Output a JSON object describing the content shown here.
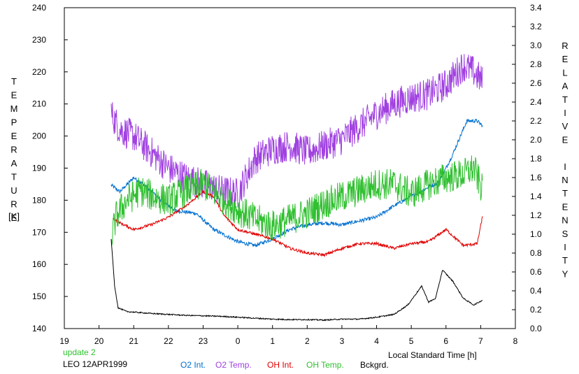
{
  "chart_data": {
    "type": "line",
    "title": "",
    "y_left_label": "TEMPERATURE",
    "y_left_unit": "[K]",
    "y_right_label": "RELATIVE INTENSITY",
    "xlabel": "Local Standard Time [h]",
    "update_note": "update 2",
    "site_date": "LEO 12APR1999",
    "x_range": [
      19,
      32
    ],
    "x_tick_labels": [
      "19",
      "20",
      "21",
      "22",
      "23",
      "0",
      "1",
      "2",
      "3",
      "4",
      "5",
      "6",
      "7",
      "8"
    ],
    "y_left_range": [
      140,
      240
    ],
    "y_left_ticks": [
      "140",
      "150",
      "160",
      "170",
      "180",
      "190",
      "200",
      "210",
      "220",
      "230",
      "240"
    ],
    "y_right_range": [
      0.0,
      3.4
    ],
    "y_right_ticks": [
      "0.0",
      "0.2",
      "0.4",
      "0.6",
      "0.8",
      "1.0",
      "1.2",
      "1.4",
      "1.6",
      "1.8",
      "2.0",
      "2.2",
      "2.4",
      "2.6",
      "2.8",
      "3.0",
      "3.2",
      "3.4"
    ],
    "grid": false,
    "legend_position": "bottom",
    "series": [
      {
        "name": "O2 Int.",
        "axis": "right",
        "color": "#0070d0",
        "noise": 0.02,
        "x": [
          20.35,
          20.6,
          21.0,
          21.3,
          21.8,
          22.2,
          22.8,
          23.3,
          24.0,
          24.5,
          25.0,
          25.5,
          26.0,
          26.5,
          27.0,
          27.5,
          28.0,
          28.5,
          29.0,
          29.5,
          29.8,
          30.2,
          30.6,
          30.9,
          31.05
        ],
        "y": [
          1.52,
          1.45,
          1.6,
          1.52,
          1.36,
          1.25,
          1.22,
          1.05,
          0.92,
          0.88,
          0.95,
          1.05,
          1.1,
          1.12,
          1.1,
          1.14,
          1.18,
          1.3,
          1.4,
          1.5,
          1.55,
          1.85,
          2.2,
          2.2,
          2.15
        ]
      },
      {
        "name": "O2 Temp.",
        "axis": "left",
        "color": "#a040e0",
        "noise": 5,
        "x": [
          20.35,
          20.6,
          21.0,
          21.5,
          22.0,
          22.5,
          23.0,
          23.5,
          24.0,
          24.5,
          25.0,
          25.5,
          26.0,
          26.5,
          27.0,
          27.5,
          28.0,
          28.5,
          29.0,
          29.5,
          30.0,
          30.5,
          30.8,
          31.05
        ],
        "y": [
          207,
          202,
          200,
          195,
          190,
          187,
          185,
          183,
          182,
          193,
          196,
          197,
          195,
          197,
          199,
          203,
          207,
          210,
          212,
          213,
          216,
          222,
          220,
          217
        ]
      },
      {
        "name": "OH Int.",
        "axis": "right",
        "color": "#e00000",
        "noise": 0.015,
        "x": [
          20.4,
          20.6,
          21.0,
          21.5,
          22.0,
          22.5,
          23.0,
          23.3,
          23.6,
          24.0,
          24.5,
          25.0,
          25.5,
          26.0,
          26.5,
          27.0,
          27.5,
          28.0,
          28.5,
          29.0,
          29.5,
          30.0,
          30.5,
          30.9,
          31.05
        ],
        "y": [
          1.17,
          1.12,
          1.05,
          1.1,
          1.18,
          1.3,
          1.45,
          1.4,
          1.2,
          1.05,
          1.0,
          0.95,
          0.85,
          0.8,
          0.78,
          0.85,
          0.9,
          0.9,
          0.85,
          0.9,
          0.92,
          1.05,
          0.88,
          0.9,
          1.18
        ]
      },
      {
        "name": "OH Temp.",
        "axis": "left",
        "color": "#30c030",
        "noise": 5,
        "x": [
          20.35,
          20.5,
          20.8,
          21.2,
          21.6,
          22.0,
          22.5,
          23.0,
          23.5,
          24.0,
          24.5,
          25.0,
          25.5,
          26.0,
          26.5,
          27.0,
          27.5,
          28.0,
          28.5,
          29.0,
          29.5,
          30.0,
          30.5,
          30.8,
          31.05
        ],
        "y": [
          168,
          175,
          180,
          183,
          181,
          180,
          183,
          185,
          181,
          177,
          174,
          172,
          174,
          176,
          179,
          181,
          183,
          185,
          185,
          182,
          185,
          187,
          188,
          190,
          183
        ]
      },
      {
        "name": "Bckgrd.",
        "axis": "right",
        "color": "#000000",
        "noise": 0.006,
        "x": [
          20.35,
          20.45,
          20.55,
          20.8,
          21.5,
          22.5,
          23.5,
          24.0,
          24.5,
          25.0,
          25.5,
          26.0,
          26.5,
          27.0,
          27.5,
          28.0,
          28.5,
          28.9,
          29.1,
          29.3,
          29.5,
          29.7,
          29.9,
          30.2,
          30.5,
          30.8,
          31.05
        ],
        "y": [
          0.95,
          0.45,
          0.22,
          0.18,
          0.16,
          0.14,
          0.13,
          0.12,
          0.11,
          0.1,
          0.095,
          0.095,
          0.09,
          0.1,
          0.1,
          0.12,
          0.15,
          0.25,
          0.35,
          0.45,
          0.28,
          0.32,
          0.62,
          0.5,
          0.32,
          0.25,
          0.3
        ]
      }
    ]
  }
}
